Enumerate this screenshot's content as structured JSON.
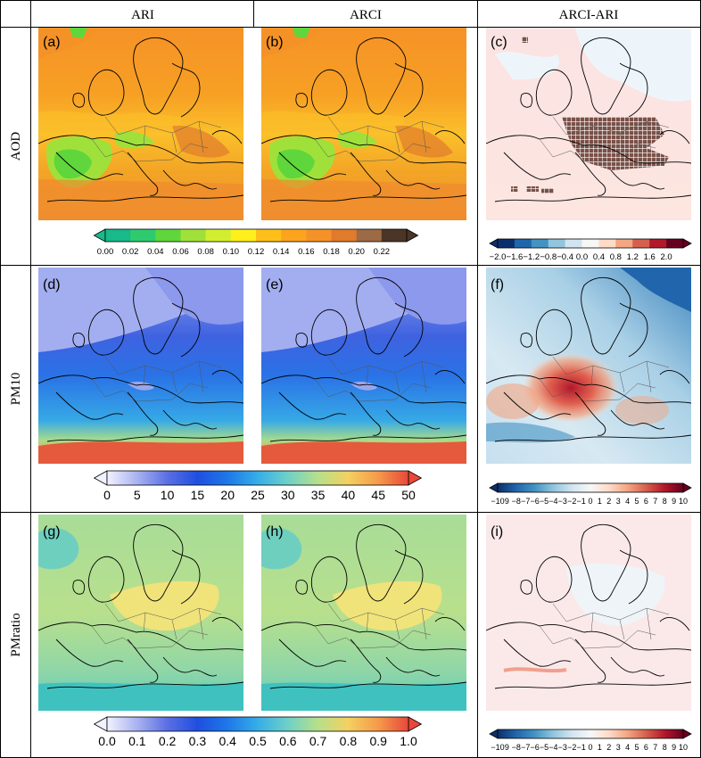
{
  "columns": [
    "ARI",
    "ARCI",
    "ARCI-ARI"
  ],
  "rows": [
    "AOD",
    "PM10",
    "PMratio"
  ],
  "panel_labels": [
    "(a)",
    "(b)",
    "(c)",
    "(d)",
    "(e)",
    "(f)",
    "(g)",
    "(h)",
    "(i)"
  ],
  "chart_data": {
    "type": "heatmap",
    "colorbars": [
      {
        "id": "aod",
        "ticks": [
          "0.00",
          "0.02",
          "0.04",
          "0.06",
          "0.08",
          "0.10",
          "0.12",
          "0.14",
          "0.16",
          "0.18",
          "0.20",
          "0.22"
        ],
        "colors": [
          "#18b98a",
          "#2ecb6e",
          "#5fd63c",
          "#9fe13a",
          "#d2ee30",
          "#fff01c",
          "#ffbf1a",
          "#fca41e",
          "#f59227",
          "#e07b2c",
          "#9c6a45",
          "#4a3526"
        ]
      },
      {
        "id": "aod_diff",
        "ticks": [
          "−2.0",
          "−1.6",
          "−1.2",
          "−0.8",
          "−0.4",
          "0.0",
          "0.4",
          "0.8",
          "1.2",
          "1.6",
          "2.0"
        ],
        "colors": [
          "#0b2f6b",
          "#2066ac",
          "#4393c3",
          "#92c5de",
          "#d1e5f0",
          "#f7f7f7",
          "#fddbc7",
          "#f4a582",
          "#d6604d",
          "#b2182b",
          "#67001f"
        ]
      },
      {
        "id": "pm10",
        "ticks": [
          "0",
          "5",
          "10",
          "15",
          "20",
          "25",
          "30",
          "35",
          "40",
          "45",
          "50"
        ],
        "gradient": [
          "#f2f2ff",
          "#a9b2f0",
          "#5a6fe3",
          "#1f4fe0",
          "#1e78e8",
          "#35aee8",
          "#6fd0c8",
          "#b6e08a",
          "#f4d060",
          "#f59a4a",
          "#e8483a"
        ]
      },
      {
        "id": "pm10_diff",
        "ticks": [
          "−10",
          "9",
          "−8",
          "−7",
          "−6",
          "−5",
          "−4",
          "−3",
          "−2",
          "−1",
          "0",
          "1",
          "2",
          "3",
          "4",
          "5",
          "6",
          "7",
          "8",
          "9",
          "10"
        ],
        "gradient": [
          "#0b2f6b",
          "#2066ac",
          "#4393c3",
          "#92c5de",
          "#d1e5f0",
          "#f7f7f7",
          "#fddbc7",
          "#f4a582",
          "#d6604d",
          "#b2182b",
          "#67001f"
        ]
      },
      {
        "id": "pmratio",
        "ticks": [
          "0.0",
          "0.1",
          "0.2",
          "0.3",
          "0.4",
          "0.5",
          "0.6",
          "0.7",
          "0.8",
          "0.9",
          "1.0"
        ],
        "gradient": [
          "#f2f2ff",
          "#a9b2f0",
          "#5a6fe3",
          "#1f4fe0",
          "#1e78e8",
          "#35aee8",
          "#6fd0c8",
          "#b6e08a",
          "#f4d060",
          "#f59a4a",
          "#e8483a"
        ]
      },
      {
        "id": "pmratio_diff",
        "ticks": [
          "−10",
          "9",
          "−8",
          "−7",
          "−6",
          "−5",
          "−4",
          "−3",
          "−2",
          "−1",
          "0",
          "1",
          "2",
          "3",
          "4",
          "5",
          "6",
          "7",
          "8",
          "9",
          "10"
        ],
        "gradient": [
          "#0b2f6b",
          "#2066ac",
          "#4393c3",
          "#92c5de",
          "#d1e5f0",
          "#f7f7f7",
          "#fddbc7",
          "#f4a582",
          "#d6604d",
          "#b2182b",
          "#67001f"
        ]
      }
    ]
  }
}
